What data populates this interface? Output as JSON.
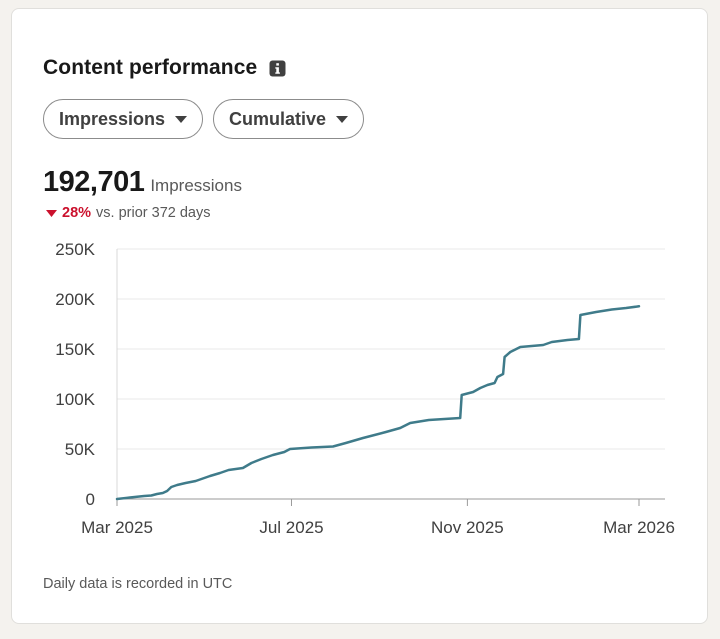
{
  "card": {
    "title": "Content performance",
    "metric_dropdown": "Impressions",
    "mode_dropdown": "Cumulative",
    "total_value": "192,701",
    "total_label": "Impressions",
    "change_pct": "28%",
    "change_text": "vs. prior 372 days",
    "change_direction": "down",
    "footer_note": "Daily data is recorded in UTC"
  },
  "colors": {
    "line": "#3f7b8a",
    "negative": "#cb112d",
    "grid": "#e8e8e8"
  },
  "chart_data": {
    "type": "line",
    "title": "",
    "xlabel": "",
    "ylabel": "",
    "ylim": [
      0,
      250000
    ],
    "y_ticks": [
      0,
      50000,
      100000,
      150000,
      200000,
      250000
    ],
    "y_tick_labels": [
      "0",
      "50K",
      "100K",
      "150K",
      "200K",
      "250K"
    ],
    "x_ticks": [
      "2025-03-01",
      "2025-07-01",
      "2025-11-01",
      "2026-03-01"
    ],
    "x_tick_labels": [
      "Mar 2025",
      "Jul 2025",
      "Nov 2025",
      "Mar 2026"
    ],
    "grid": true,
    "series": [
      {
        "name": "",
        "points": [
          [
            "2025-03-01",
            0
          ],
          [
            "2025-03-10",
            1500
          ],
          [
            "2025-03-20",
            3000
          ],
          [
            "2025-03-25",
            3500
          ],
          [
            "2025-03-29",
            5000
          ],
          [
            "2025-04-02",
            6000
          ],
          [
            "2025-04-05",
            8000
          ],
          [
            "2025-04-08",
            12000
          ],
          [
            "2025-04-12",
            14000
          ],
          [
            "2025-04-18",
            16000
          ],
          [
            "2025-04-25",
            18000
          ],
          [
            "2025-05-05",
            23000
          ],
          [
            "2025-05-12",
            26000
          ],
          [
            "2025-05-18",
            29000
          ],
          [
            "2025-05-28",
            31000
          ],
          [
            "2025-06-03",
            36000
          ],
          [
            "2025-06-10",
            40000
          ],
          [
            "2025-06-18",
            44000
          ],
          [
            "2025-06-26",
            47000
          ],
          [
            "2025-06-30",
            50000
          ],
          [
            "2025-07-15",
            51500
          ],
          [
            "2025-07-30",
            52500
          ],
          [
            "2025-08-08",
            56000
          ],
          [
            "2025-08-20",
            61000
          ],
          [
            "2025-09-05",
            67000
          ],
          [
            "2025-09-15",
            71000
          ],
          [
            "2025-09-22",
            76000
          ],
          [
            "2025-10-05",
            79000
          ],
          [
            "2025-10-27",
            81000
          ],
          [
            "2025-10-28",
            104000
          ],
          [
            "2025-11-05",
            107000
          ],
          [
            "2025-11-10",
            111000
          ],
          [
            "2025-11-15",
            114000
          ],
          [
            "2025-11-20",
            116000
          ],
          [
            "2025-11-22",
            122000
          ],
          [
            "2025-11-26",
            125000
          ],
          [
            "2025-11-27",
            142000
          ],
          [
            "2025-12-01",
            147000
          ],
          [
            "2025-12-08",
            152000
          ],
          [
            "2025-12-24",
            154000
          ],
          [
            "2025-12-30",
            157000
          ],
          [
            "2026-01-10",
            159000
          ],
          [
            "2026-01-18",
            160000
          ],
          [
            "2026-01-19",
            184000
          ],
          [
            "2026-01-30",
            187000
          ],
          [
            "2026-02-10",
            189500
          ],
          [
            "2026-02-20",
            191000
          ],
          [
            "2026-03-01",
            192701
          ]
        ]
      }
    ]
  }
}
